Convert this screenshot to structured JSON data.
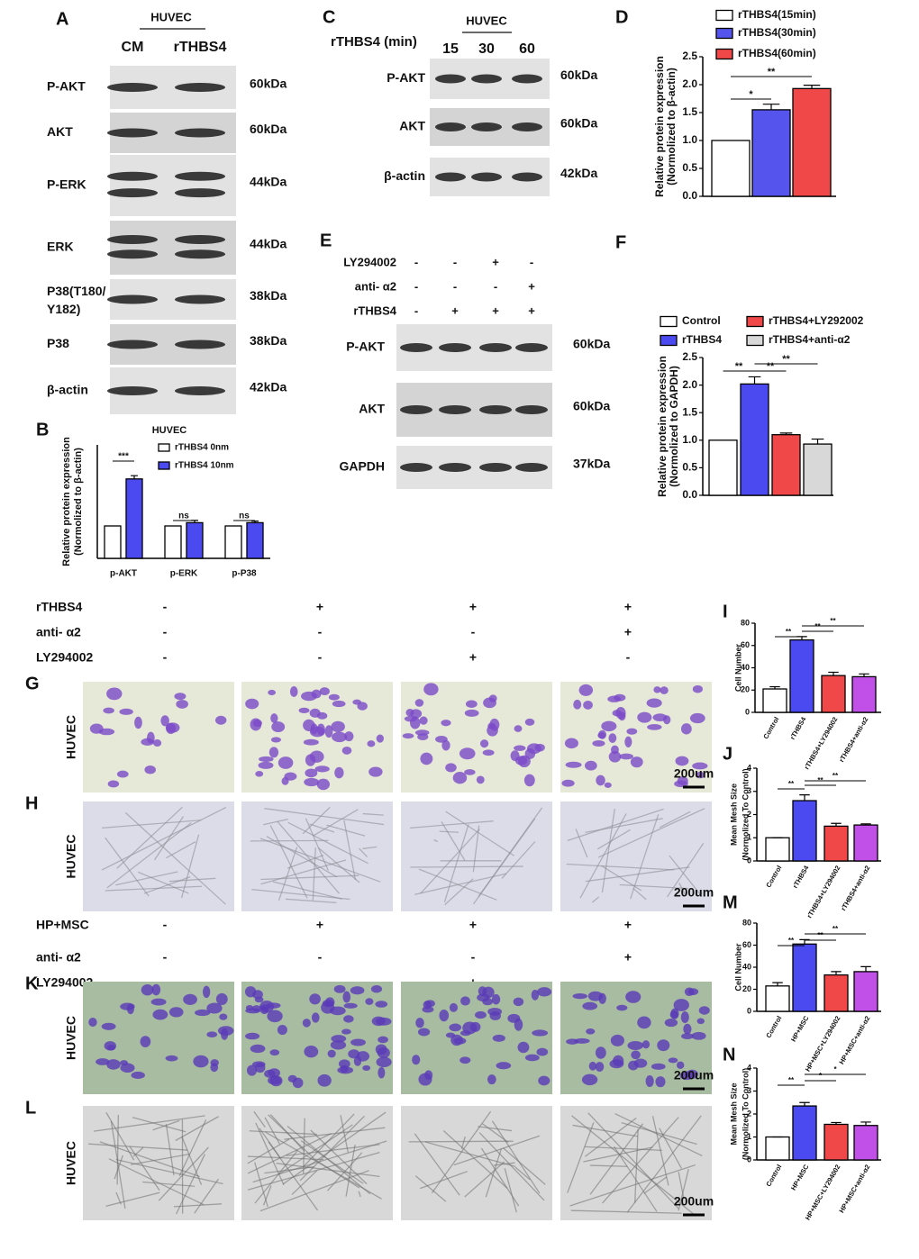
{
  "panel_a": {
    "letter": "A",
    "cell": "HUVEC",
    "lanes": [
      "CM",
      "rTHBS4"
    ],
    "rows": [
      {
        "label": "P-AKT",
        "size": "60kDa"
      },
      {
        "label": "AKT",
        "size": "60kDa"
      },
      {
        "label": "P-ERK",
        "size": "44kDa"
      },
      {
        "label": "ERK",
        "size": "44kDa"
      },
      {
        "label": "P38(T180/Y182)",
        "size": "38kDa"
      },
      {
        "label": "P38",
        "size": "38kDa"
      },
      {
        "label": "β-actin",
        "size": "42kDa"
      }
    ]
  },
  "panel_c": {
    "letter": "C",
    "cell": "HUVEC",
    "treatment": "rTHBS4  (min)",
    "lanes": [
      "15",
      "30",
      "60"
    ],
    "rows": [
      {
        "label": "P-AKT",
        "size": "60kDa"
      },
      {
        "label": "AKT",
        "size": "60kDa"
      },
      {
        "label": "β-actin",
        "size": "42kDa"
      }
    ]
  },
  "panel_e": {
    "letter": "E",
    "conditions": [
      {
        "label": "LY294002",
        "marks": [
          "-",
          "-",
          "+",
          "-"
        ]
      },
      {
        "label": "anti- α2",
        "marks": [
          "-",
          "-",
          "-",
          "+"
        ]
      },
      {
        "label": "rTHBS4",
        "marks": [
          "-",
          "+",
          "+",
          "+"
        ]
      }
    ],
    "rows": [
      {
        "label": "P-AKT",
        "size": "60kDa"
      },
      {
        "label": "AKT",
        "size": "60kDa"
      },
      {
        "label": "GAPDH",
        "size": "37kDa"
      }
    ]
  },
  "panel_gh": {
    "conditions": [
      {
        "label": "rTHBS4",
        "marks": [
          "-",
          "+",
          "+",
          "+"
        ]
      },
      {
        "label": "anti- α2",
        "marks": [
          "-",
          "-",
          "-",
          "+"
        ]
      },
      {
        "label": "LY294002",
        "marks": [
          "-",
          "-",
          "+",
          "-"
        ]
      }
    ],
    "rows": [
      {
        "letter": "G",
        "label": "HUVEC",
        "scale": "200um"
      },
      {
        "letter": "H",
        "label": "HUVEC",
        "scale": "200um"
      }
    ]
  },
  "panel_kl": {
    "conditions": [
      {
        "label": "HP+MSC",
        "marks": [
          "-",
          "+",
          "+",
          "+"
        ]
      },
      {
        "label": "anti- α2",
        "marks": [
          "-",
          "-",
          "-",
          "+"
        ]
      },
      {
        "label": "LY294002",
        "marks": [
          "-",
          "-",
          "+",
          "-"
        ]
      }
    ],
    "rows": [
      {
        "letter": "K",
        "label": "HUVEC",
        "scale": "200um"
      },
      {
        "letter": "L",
        "label": "HUVEC",
        "scale": "200um"
      }
    ]
  },
  "chart_data": [
    {
      "type": "bar",
      "panel": "B",
      "title": "HUVEC",
      "ylabel": [
        "Relative protein expression",
        "(Normolized to β-actin)"
      ],
      "categories": [
        "p-AKT",
        "p-ERK",
        "p-P38"
      ],
      "series": [
        {
          "name": "rTHBS4 0nm",
          "color": "#ffffff",
          "values": [
            1,
            1,
            1
          ]
        },
        {
          "name": "rTHBS4 10nm",
          "color": "#4a4af0",
          "values": [
            2.45,
            1.1,
            1.1
          ],
          "errors": [
            0.1,
            0.07,
            0.05
          ]
        }
      ],
      "ylim": [
        0,
        3.5
      ],
      "annotations": [
        "***",
        "ns",
        "ns"
      ]
    },
    {
      "type": "bar",
      "panel": "D",
      "ylabel": [
        "Relative protein expression",
        "(Normolized to β-actin)"
      ],
      "categories": [
        null
      ],
      "series": [
        {
          "name": "rTHBS4(15min)",
          "color": "#ffffff",
          "values": [
            1
          ]
        },
        {
          "name": "rTHBS4(30min)",
          "color": "#5555ee",
          "values": [
            1.55
          ],
          "errors": [
            0.1
          ]
        },
        {
          "name": "rTHBS4(60min)",
          "color": "#f04848",
          "values": [
            1.93
          ],
          "errors": [
            0.06
          ]
        }
      ],
      "ylim": [
        0,
        2.5
      ],
      "yticks": [
        {
          "value": 0,
          "label": "0.0"
        },
        {
          "value": 0.5,
          "label": "0.5"
        },
        {
          "value": 1,
          "label": "1.0"
        },
        {
          "value": 1.5,
          "label": "1.5"
        },
        {
          "value": 2,
          "label": "2.0"
        },
        {
          "value": 2.5,
          "label": "2.5"
        }
      ],
      "annotations": [
        "*",
        "**"
      ]
    },
    {
      "type": "bar",
      "panel": "F",
      "ylabel": [
        "Relative protein expression",
        "(Normolized to GAPDH)"
      ],
      "categories": [
        null
      ],
      "series": [
        {
          "name": "Control",
          "color": "#ffffff",
          "values": [
            1
          ]
        },
        {
          "name": "rTHBS4",
          "color": "#4a4af0",
          "values": [
            2.02
          ],
          "errors": [
            0.13
          ]
        },
        {
          "name": "rTHBS4+LY292002",
          "color": "#f04848",
          "values": [
            1.1
          ],
          "errors": [
            0.03
          ]
        },
        {
          "name": "rTHBS4+anti-α2",
          "color": "#d8d8d8",
          "values": [
            0.93
          ],
          "errors": [
            0.09
          ]
        }
      ],
      "ylim": [
        0,
        2.5
      ],
      "yticks": [
        {
          "value": 0,
          "label": "0.0"
        },
        {
          "value": 0.5,
          "label": "0.5"
        },
        {
          "value": 1,
          "label": "1.0"
        },
        {
          "value": 1.5,
          "label": "1.5"
        },
        {
          "value": 2,
          "label": "2.0"
        },
        {
          "value": 2.5,
          "label": "2.5"
        }
      ],
      "annotations": [
        "**",
        "**",
        "**"
      ]
    },
    {
      "type": "bar",
      "panel": "I",
      "ylabel": [
        "Cell Number"
      ],
      "categories": [
        "Control",
        "rTHBS4",
        "rTHBS4+LY294002",
        "rTHBS4+anti-α2"
      ],
      "series": [
        {
          "colors": [
            "#ffffff",
            "#4a4af0",
            "#f04848",
            "#c050e8"
          ],
          "values": [
            21,
            65,
            33,
            32
          ],
          "errors": [
            2,
            3,
            3,
            2.5
          ]
        }
      ],
      "ylim": [
        0,
        80
      ],
      "yticks": [
        0,
        20,
        40,
        60,
        80
      ],
      "annotations": [
        "**",
        "**",
        "**"
      ]
    },
    {
      "type": "bar",
      "panel": "J",
      "ylabel": [
        "Mean Mesh Size",
        "(Normolized To Control)"
      ],
      "categories": [
        "Control",
        "rTHBS4",
        "rTHBS4+LY294002",
        "rTHBS4+anti-α2"
      ],
      "series": [
        {
          "colors": [
            "#ffffff",
            "#4a4af0",
            "#f04848",
            "#c050e8"
          ],
          "values": [
            1,
            2.6,
            1.5,
            1.55
          ],
          "errors": [
            0,
            0.25,
            0.12,
            0.05
          ]
        }
      ],
      "ylim": [
        0,
        4
      ],
      "yticks": [
        0,
        1,
        2,
        3,
        4
      ],
      "annotations": [
        "**",
        "**",
        "**"
      ]
    },
    {
      "type": "bar",
      "panel": "M",
      "ylabel": [
        "Cell Number"
      ],
      "categories": [
        "Control",
        "HP+MSC",
        "HP+MSC+LY294002",
        "HP+MSC+anti-α2"
      ],
      "series": [
        {
          "colors": [
            "#ffffff",
            "#4a4af0",
            "#f04848",
            "#c050e8"
          ],
          "values": [
            23,
            61,
            33,
            36
          ],
          "errors": [
            3,
            4,
            3,
            4.5
          ]
        }
      ],
      "ylim": [
        0,
        80
      ],
      "yticks": [
        0,
        20,
        40,
        60,
        80
      ],
      "annotations": [
        "**",
        "**",
        "**"
      ]
    },
    {
      "type": "bar",
      "panel": "N",
      "ylabel": [
        "Mean Mesh Size",
        "(Normolized To Control)"
      ],
      "categories": [
        "Control",
        "HP+MSC",
        "HP+MSC+LY294002",
        "HP+MSC+anti-α2"
      ],
      "series": [
        {
          "colors": [
            "#ffffff",
            "#4a4af0",
            "#f04848",
            "#c050e8"
          ],
          "values": [
            1,
            2.35,
            1.55,
            1.5
          ],
          "errors": [
            0,
            0.15,
            0.08,
            0.15
          ]
        }
      ],
      "ylim": [
        0,
        4
      ],
      "yticks": [
        0,
        1,
        2,
        3,
        4
      ],
      "annotations": [
        "**",
        "*",
        "*"
      ]
    }
  ]
}
